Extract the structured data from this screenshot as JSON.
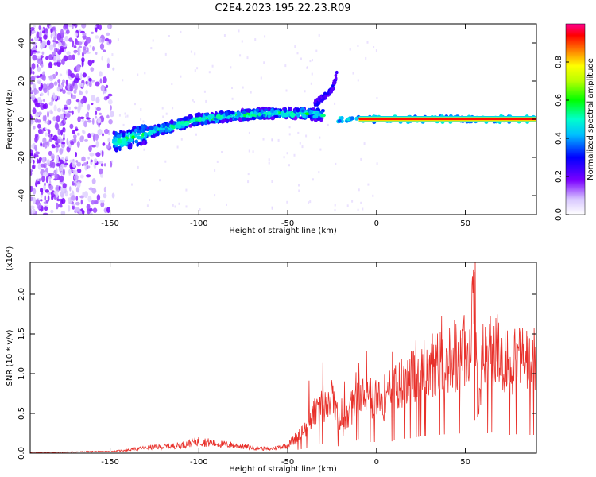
{
  "title": "C2E4.2023.195.22.23.R09",
  "chart_data": [
    {
      "type": "heatmap",
      "xlabel": "Height of straight line (km)",
      "ylabel": "Frequency (Hz)",
      "xlim": [
        -195,
        90
      ],
      "ylim": [
        -50,
        50
      ],
      "xticks": [
        -150,
        -100,
        -50,
        0,
        50
      ],
      "yticks": [
        -40,
        -20,
        0,
        20,
        40
      ],
      "colorbar": {
        "label": "Normalized spectral amplitude",
        "range": [
          0,
          1
        ],
        "ticks": [
          "0.0",
          "0.2",
          "0.4",
          "0.6",
          "0.8"
        ]
      },
      "features": [
        {
          "x_range": [
            -195,
            -148
          ],
          "freq_range": [
            -50,
            50
          ],
          "amplitude": 0.1
        },
        {
          "x": [
            -148,
            -120,
            -100,
            -80,
            -60,
            -40,
            -30
          ],
          "freq": [
            -12,
            -5,
            0,
            2,
            3,
            3,
            2
          ],
          "amplitude": 0.35
        },
        {
          "x": [
            -35,
            -25,
            -22
          ],
          "freq": [
            8,
            15,
            25
          ],
          "amplitude": 0.25
        },
        {
          "x": [
            -22,
            -10,
            0,
            90
          ],
          "freq": [
            0,
            0,
            0,
            0
          ],
          "amplitude": 0.9
        }
      ]
    },
    {
      "type": "line",
      "title": "",
      "xlabel": "Height of straight line (km)",
      "ylabel": "SNR (10 * v/v)",
      "multiplier": "(x10⁴)",
      "xlim": [
        -195,
        90
      ],
      "ylim": [
        0,
        2.4
      ],
      "xticks": [
        -150,
        -100,
        -50,
        0,
        50
      ],
      "yticks": [
        "0.0",
        "0.5",
        "1.0",
        "1.5",
        "2.0"
      ],
      "series": [
        {
          "color": "#e8302a",
          "x": [
            -195,
            -180,
            -160,
            -150,
            -140,
            -130,
            -120,
            -110,
            -100,
            -90,
            -80,
            -70,
            -60,
            -50,
            -45,
            -40,
            -35,
            -30,
            -25,
            -20,
            -15,
            -10,
            -5,
            0,
            5,
            10,
            15,
            20,
            25,
            30,
            35,
            40,
            45,
            50,
            52,
            55,
            57,
            60,
            65,
            70,
            75,
            80,
            85,
            90
          ],
          "y": [
            0.01,
            0.01,
            0.02,
            0.02,
            0.04,
            0.07,
            0.08,
            0.1,
            0.15,
            0.12,
            0.1,
            0.07,
            0.05,
            0.1,
            0.2,
            0.3,
            0.5,
            0.6,
            0.7,
            0.3,
            0.5,
            0.9,
            0.7,
            0.7,
            0.6,
            0.8,
            0.9,
            0.95,
            1.05,
            1.1,
            1.15,
            1.2,
            1.25,
            1.2,
            1.0,
            2.35,
            0.5,
            1.2,
            1.3,
            1.2,
            1.15,
            1.2,
            1.15,
            1.15
          ]
        }
      ]
    }
  ]
}
